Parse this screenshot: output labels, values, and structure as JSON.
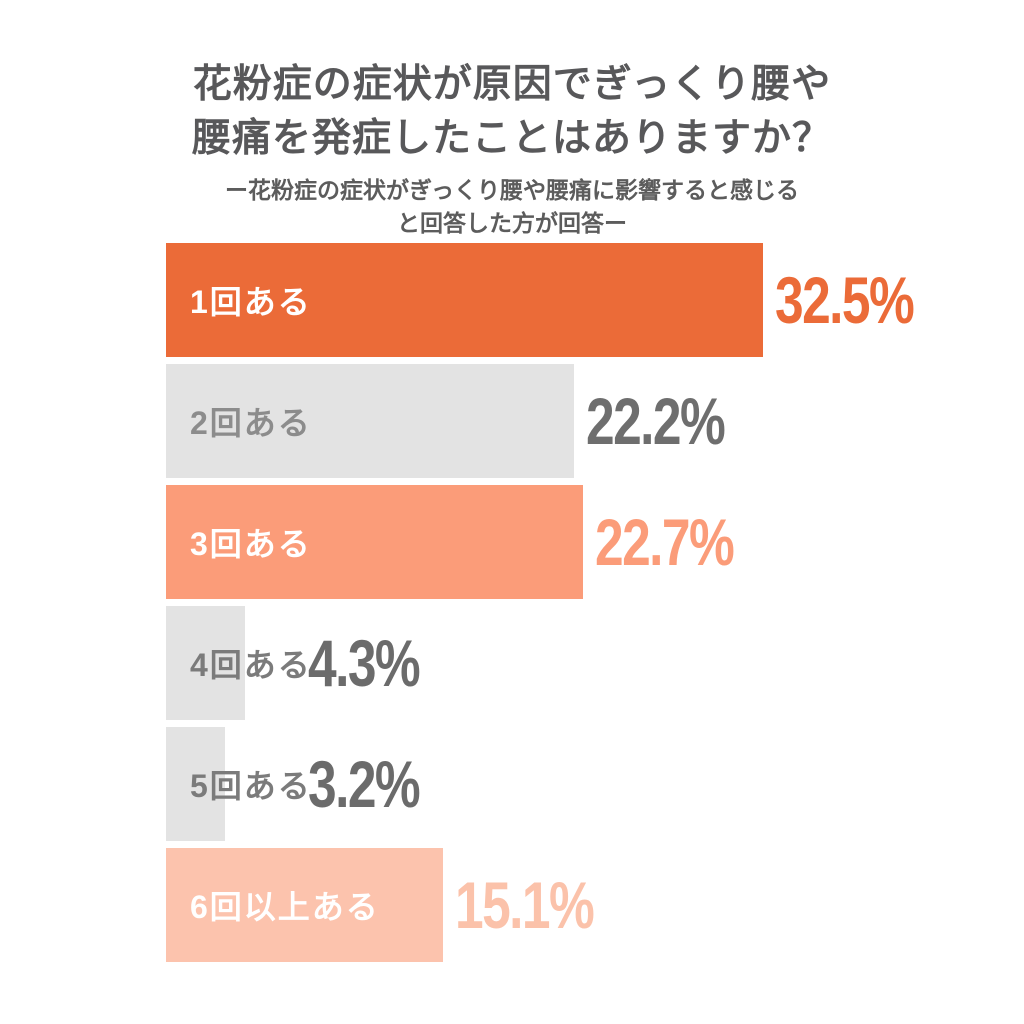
{
  "title": {
    "line1": "花粉症の症状が原因でぎっくり腰や",
    "line2": "腰痛を発症したことはありますか？"
  },
  "subtitle": {
    "line1": "ー花粉症の症状がぎっくり腰や腰痛に影響すると感じる",
    "line2": "と回答した方が回答ー"
  },
  "colors": {
    "title_text": "#58585a",
    "accent_orange": "#EB6B38",
    "salmon": "#FB9C79",
    "peach": "#FCC3AD",
    "bar_gray": "#E3E3E3",
    "value_gray": "#6B6B6B",
    "background": "#FFFFFF"
  },
  "rows": [
    {
      "label": "1回ある",
      "value_label": "32.5%",
      "percent": 32.5,
      "bar_color": "#EB6B38",
      "label_color": "#FFFFFF",
      "value_color": "#EB6B38"
    },
    {
      "label": "2回ある",
      "value_label": "22.2%",
      "percent": 22.2,
      "bar_color": "#E3E3E3",
      "label_color": "#8C8C8C",
      "value_color": "#6E6E6E"
    },
    {
      "label": "3回ある",
      "value_label": "22.7%",
      "percent": 22.7,
      "bar_color": "#FB9C79",
      "label_color": "#FFFFFF",
      "value_color": "#FB9C79"
    },
    {
      "label": "4回ある",
      "value_label": "4.3%",
      "percent": 4.3,
      "bar_color": "#E3E3E3",
      "label_color": "#7B7B7B",
      "value_color": "#6B6B6B"
    },
    {
      "label": "5回ある",
      "value_label": "3.2%",
      "percent": 3.2,
      "bar_color": "#E3E3E3",
      "label_color": "#7B7B7B",
      "value_color": "#6B6B6B"
    },
    {
      "label": "6回以上ある",
      "value_label": "15.1%",
      "percent": 15.1,
      "bar_color": "#FCC3AD",
      "label_color": "#FFFFFF",
      "value_color": "#FBC2AA"
    }
  ],
  "chart_data": {
    "type": "bar",
    "orientation": "horizontal",
    "title": "花粉症の症状が原因でぎっくり腰や腰痛を発症したことはありますか？",
    "subtitle": "ー花粉症の症状がぎっくり腰や腰痛に影響すると感じると回答した方が回答ー",
    "categories": [
      "1回ある",
      "2回ある",
      "3回ある",
      "4回ある",
      "5回ある",
      "6回以上ある"
    ],
    "values": [
      32.5,
      22.2,
      22.7,
      4.3,
      3.2,
      15.1
    ],
    "value_unit": "%",
    "data_labels": [
      "32.5%",
      "22.2%",
      "22.7%",
      "4.3%",
      "3.2%",
      "15.1%"
    ],
    "xlabel": "",
    "ylabel": "",
    "xlim": [
      0,
      35
    ],
    "grid": false,
    "legend": false,
    "bar_colors": [
      "#EB6B38",
      "#E3E3E3",
      "#FB9C79",
      "#E3E3E3",
      "#E3E3E3",
      "#FCC3AD"
    ]
  }
}
